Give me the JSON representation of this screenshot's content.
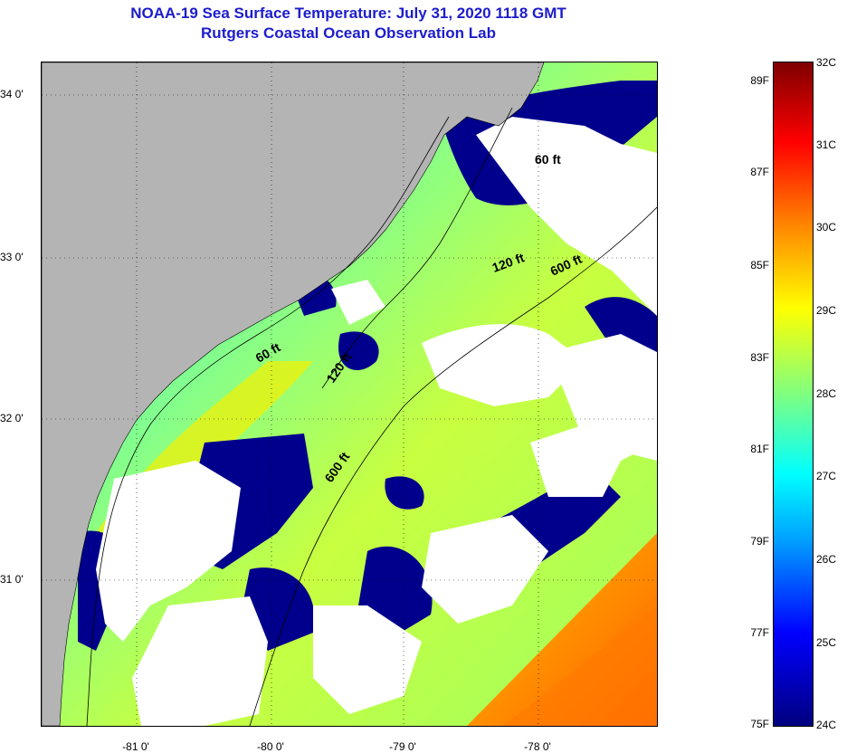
{
  "title": "NOAA-19 Sea Surface Temperature:  July 31, 2020 1118 GMT",
  "subtitle": "Rutgers Coastal Ocean Observation Lab",
  "latitude_ticks": [
    "34 0'",
    "33 0'",
    "32 0'",
    "31 0'"
  ],
  "longitude_ticks": [
    "-81 0'",
    "-80 0'",
    "-79 0'",
    "-78 0'"
  ],
  "contour_labels": [
    "60 ft",
    "120 ft",
    "600 ft",
    "60 ft",
    "120 ft",
    "600 ft"
  ],
  "colorbar": {
    "fahrenheit_labels": [
      "89F",
      "87F",
      "85F",
      "83F",
      "81F",
      "79F",
      "77F",
      "75F"
    ],
    "celsius_labels": [
      "32C",
      "31C",
      "30C",
      "29C",
      "28C",
      "27C",
      "26C",
      "25C",
      "24C"
    ],
    "colors": [
      "#00007f",
      "#0000ff",
      "#00a0ff",
      "#00ffff",
      "#80ff80",
      "#ffff00",
      "#ff8000",
      "#ff0000",
      "#7f0000"
    ]
  },
  "colors": {
    "land": "#b4b4b4",
    "cloud": "#ffffff",
    "title": "#1c1ccc"
  }
}
